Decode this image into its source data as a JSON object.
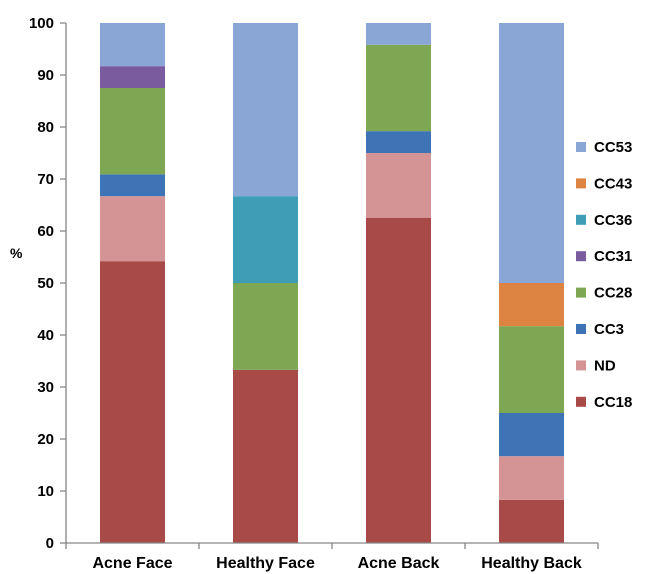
{
  "chart_data": {
    "type": "bar",
    "stacked": true,
    "title": "",
    "xlabel": "",
    "ylabel": "%",
    "ylim": [
      0,
      100
    ],
    "yticks": [
      0,
      10,
      20,
      30,
      40,
      50,
      60,
      70,
      80,
      90,
      100
    ],
    "grid": false,
    "legend_position": "right",
    "categories": [
      "Acne Face",
      "Healthy Face",
      "Acne Back",
      "Healthy Back"
    ],
    "series": [
      {
        "name": "CC18",
        "color": "#A84A48",
        "values": [
          54.2,
          33.3,
          62.5,
          8.3
        ]
      },
      {
        "name": "ND",
        "color": "#D49496",
        "values": [
          12.5,
          0,
          12.5,
          8.4
        ]
      },
      {
        "name": "CC3",
        "color": "#3E73B5",
        "values": [
          4.2,
          0,
          4.2,
          8.3
        ]
      },
      {
        "name": "CC28",
        "color": "#7EA754",
        "values": [
          16.6,
          16.7,
          16.6,
          16.7
        ]
      },
      {
        "name": "CC31",
        "color": "#7A5C9E",
        "values": [
          4.2,
          0,
          0,
          0
        ]
      },
      {
        "name": "CC36",
        "color": "#3D9EB5",
        "values": [
          0,
          16.7,
          0,
          0
        ]
      },
      {
        "name": "CC43",
        "color": "#DE8443",
        "values": [
          0,
          0,
          0,
          8.3
        ]
      },
      {
        "name": "CC53",
        "color": "#8AA6D4",
        "values": [
          8.3,
          33.3,
          4.2,
          50.0
        ]
      }
    ],
    "legend_order": [
      "CC53",
      "CC43",
      "CC36",
      "CC31",
      "CC28",
      "CC3",
      "ND",
      "CC18"
    ]
  }
}
